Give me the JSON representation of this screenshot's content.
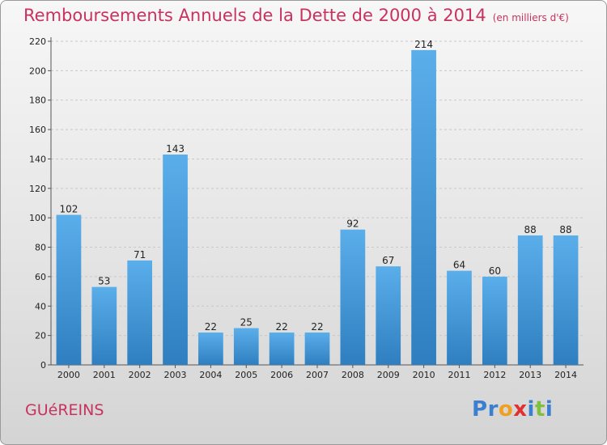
{
  "title": "Remboursements Annuels de la Dette de 2000 à 2014",
  "unit": "(en milliers d'€)",
  "commune": "GUéREINS",
  "logo": {
    "text": "Proxiti",
    "letters": [
      {
        "ch": "P",
        "color": "#3a7fd0"
      },
      {
        "ch": "r",
        "color": "#3a7fd0"
      },
      {
        "ch": "o",
        "color": "#f0a020"
      },
      {
        "ch": "x",
        "color": "#e03030"
      },
      {
        "ch": "i",
        "color": "#3a7fd0"
      },
      {
        "ch": "t",
        "color": "#80c040"
      },
      {
        "ch": "i",
        "color": "#3a7fd0"
      }
    ]
  },
  "colors": {
    "bar_top": "#5aaeea",
    "bar_bottom": "#2f7fc0",
    "title": "#c8325e"
  },
  "chart_data": {
    "type": "bar",
    "title": "Remboursements Annuels de la Dette de 2000 à 2014",
    "categories": [
      "2000",
      "2001",
      "2002",
      "2003",
      "2004",
      "2005",
      "2006",
      "2007",
      "2008",
      "2009",
      "2010",
      "2011",
      "2012",
      "2013",
      "2014"
    ],
    "values": [
      102,
      53,
      71,
      143,
      22,
      25,
      22,
      22,
      92,
      67,
      214,
      64,
      60,
      88,
      88
    ],
    "ylim": [
      0,
      220
    ],
    "yticks": [
      0,
      20,
      40,
      60,
      80,
      100,
      120,
      140,
      160,
      180,
      200,
      220
    ],
    "grid": true,
    "xlabel": "",
    "ylabel": ""
  }
}
